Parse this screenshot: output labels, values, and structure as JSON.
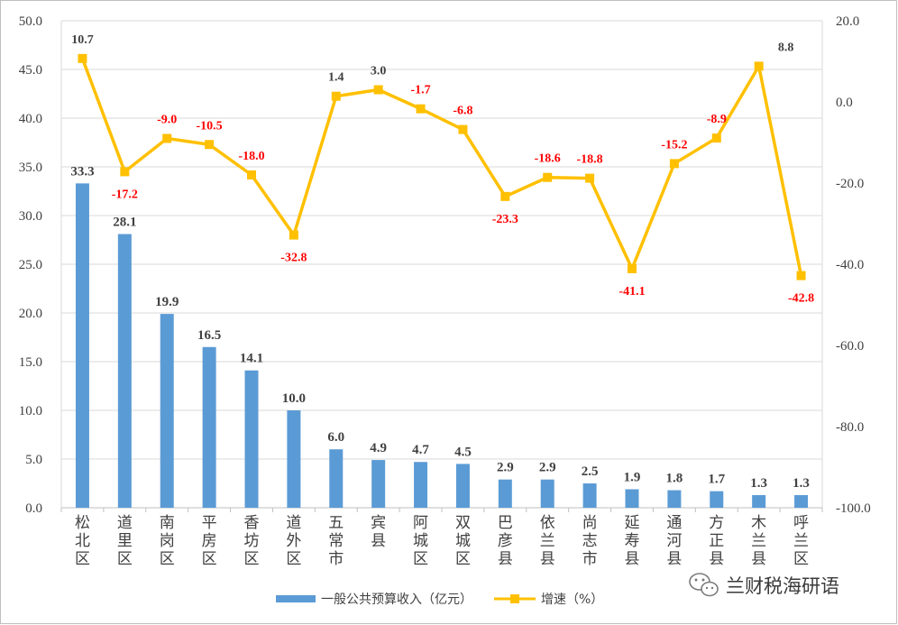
{
  "chart_data": {
    "type": "bar",
    "categories": [
      "松北区",
      "道里区",
      "南岗区",
      "平房区",
      "香坊区",
      "道外区",
      "五常市",
      "宾县",
      "阿城区",
      "双城区",
      "巴彦县",
      "依兰县",
      "尚志市",
      "延寿县",
      "通河县",
      "方正县",
      "木兰县",
      "呼兰区"
    ],
    "series": [
      {
        "name": "一般公共预算收入（亿元）",
        "type": "bar",
        "axis": "left",
        "color": "#5b9bd5",
        "values": [
          33.3,
          28.1,
          19.9,
          16.5,
          14.1,
          10.0,
          6.0,
          4.9,
          4.7,
          4.5,
          2.9,
          2.9,
          2.5,
          1.9,
          1.8,
          1.7,
          1.3,
          1.3
        ],
        "labels": [
          "33.3",
          "28.1",
          "19.9",
          "16.5",
          "14.1",
          "10.0",
          "6.0",
          "4.9",
          "4.7",
          "4.5",
          "2.9",
          "2.9",
          "2.5",
          "1.9",
          "1.8",
          "1.7",
          "1.3",
          "1.3"
        ]
      },
      {
        "name": "增速（%）",
        "type": "line",
        "axis": "right",
        "color": "#ffc000",
        "values": [
          10.7,
          -17.2,
          -9.0,
          -10.5,
          -18.0,
          -32.8,
          1.4,
          3.0,
          -1.7,
          -6.8,
          -23.3,
          -18.6,
          -18.8,
          -41.1,
          -15.2,
          -8.9,
          8.8,
          -42.8
        ],
        "labels": [
          "10.7",
          "-17.2",
          "-9.0",
          "-10.5",
          "-18.0",
          "-32.8",
          "1.4",
          "3.0",
          "-1.7",
          "-6.8",
          "-23.3",
          "-18.6",
          "-18.8",
          "-41.1",
          "-15.2",
          "-8.9",
          "8.8",
          "-42.8"
        ]
      }
    ],
    "y_left": {
      "ylim": [
        0,
        50
      ],
      "ticks": [
        "0.0",
        "5.0",
        "10.0",
        "15.0",
        "20.0",
        "25.0",
        "30.0",
        "35.0",
        "40.0",
        "45.0",
        "50.0"
      ]
    },
    "y_right": {
      "ylim": [
        -100,
        20
      ],
      "ticks": [
        "-100.0",
        "-80.0",
        "-60.0",
        "-40.0",
        "-20.0",
        "0.0",
        "20.0"
      ]
    },
    "grid": true,
    "legend_position": "bottom",
    "positive_label_color": "#404040",
    "negative_label_color": "#ff0000"
  },
  "legend": {
    "bar_label": "一般公共预算收入（亿元）",
    "line_label": "增速（%）"
  },
  "watermark": {
    "text": "兰财税海研语",
    "icon": "wechat-icon"
  }
}
